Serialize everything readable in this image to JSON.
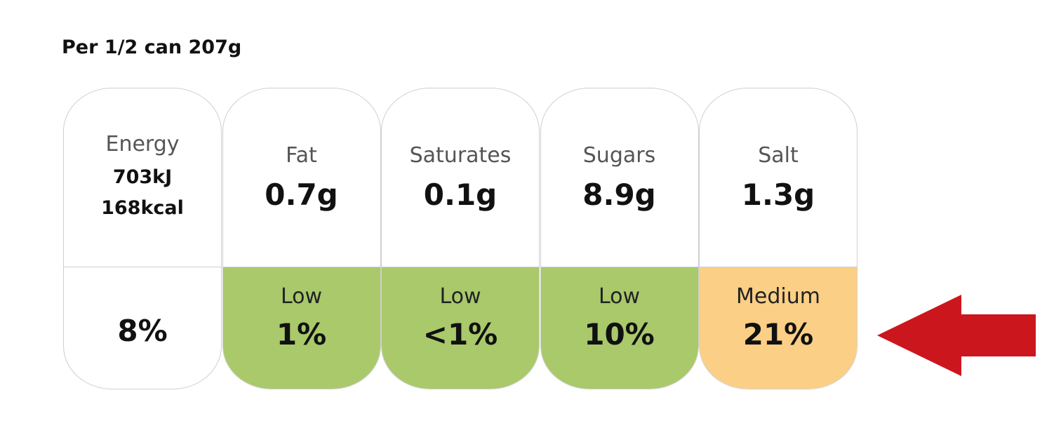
{
  "header": {
    "title": "Per 1/2 can 207g"
  },
  "panels": [
    {
      "name": "Energy",
      "amounts": [
        "703kJ",
        "168kcal"
      ],
      "percent": "8%"
    },
    {
      "name": "Fat",
      "amounts": [
        "0.7g"
      ],
      "level": "Low",
      "percent": "1%",
      "color": "#a9c96b"
    },
    {
      "name": "Saturates",
      "amounts": [
        "0.1g"
      ],
      "level": "Low",
      "percent": "<1%",
      "color": "#a9c96b"
    },
    {
      "name": "Sugars",
      "amounts": [
        "8.9g"
      ],
      "level": "Low",
      "percent": "10%",
      "color": "#a9c96b"
    },
    {
      "name": "Salt",
      "amounts": [
        "1.3g"
      ],
      "level": "Medium",
      "percent": "21%",
      "color": "#fbcf85"
    }
  ]
}
